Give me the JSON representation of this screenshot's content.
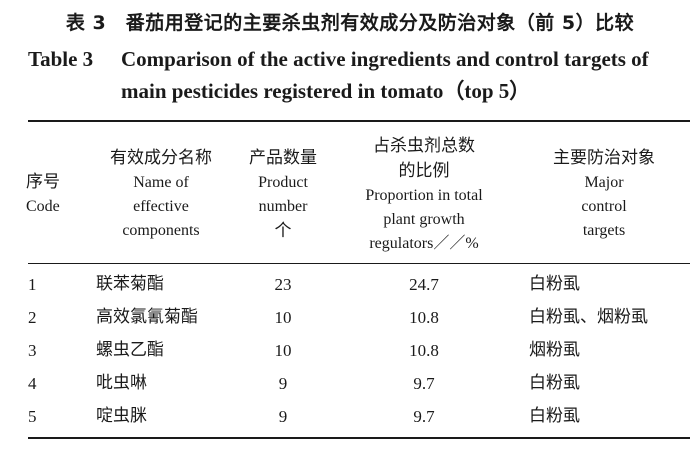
{
  "caption": {
    "cn": "表 3　番茄用登记的主要杀虫剂有效成分及防治对象（前 5）比较",
    "en_label": "Table 3",
    "en_line1": "Comparison of the active ingredients and control targets of",
    "en_line2": "main pesticides registered in tomato（top 5）"
  },
  "table": {
    "headers": {
      "code": {
        "cn": "序号",
        "en": "Code"
      },
      "name": {
        "cn": "有效成分名称",
        "en1": "Name of",
        "en2": "effective",
        "en3": "components"
      },
      "count": {
        "cn": "产品数量",
        "en1": "Product",
        "en2": "number",
        "en3": "个"
      },
      "proportion": {
        "cn1": "占杀虫剂总数",
        "cn2": "的比例",
        "en1": "Proportion in total",
        "en2": "plant growth",
        "en3": "regulators／／%"
      },
      "targets": {
        "cn": "主要防治对象",
        "en1": "Major",
        "en2": "control",
        "en3": "targets"
      }
    },
    "rows": [
      {
        "code": "1",
        "name": "联苯菊酯",
        "count": "23",
        "proportion": "24.7",
        "targets": "白粉虱"
      },
      {
        "code": "2",
        "name": "高效氯氰菊酯",
        "count": "10",
        "proportion": "10.8",
        "targets": "白粉虱、烟粉虱"
      },
      {
        "code": "3",
        "name": "螺虫乙酯",
        "count": "10",
        "proportion": "10.8",
        "targets": "烟粉虱"
      },
      {
        "code": "4",
        "name": "吡虫啉",
        "count": "9",
        "proportion": "9.7",
        "targets": "白粉虱"
      },
      {
        "code": "5",
        "name": "啶虫脒",
        "count": "9",
        "proportion": "9.7",
        "targets": "白粉虱"
      }
    ]
  }
}
